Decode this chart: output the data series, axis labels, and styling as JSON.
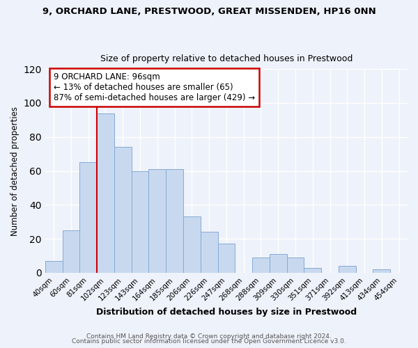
{
  "title1": "9, ORCHARD LANE, PRESTWOOD, GREAT MISSENDEN, HP16 0NN",
  "title2": "Size of property relative to detached houses in Prestwood",
  "xlabel": "Distribution of detached houses by size in Prestwood",
  "ylabel": "Number of detached properties",
  "bar_labels": [
    "40sqm",
    "60sqm",
    "81sqm",
    "102sqm",
    "123sqm",
    "143sqm",
    "164sqm",
    "185sqm",
    "206sqm",
    "226sqm",
    "247sqm",
    "268sqm",
    "288sqm",
    "309sqm",
    "330sqm",
    "351sqm",
    "371sqm",
    "392sqm",
    "413sqm",
    "434sqm",
    "454sqm"
  ],
  "bar_heights": [
    7,
    25,
    65,
    94,
    74,
    60,
    61,
    61,
    33,
    24,
    17,
    0,
    9,
    11,
    9,
    3,
    0,
    4,
    0,
    2,
    0
  ],
  "bar_color": "#c8d9ef",
  "bar_edge_color": "#85aad4",
  "vline_x_index": 3,
  "vline_color": "#cc0000",
  "annotation_title": "9 ORCHARD LANE: 96sqm",
  "annotation_line1": "← 13% of detached houses are smaller (65)",
  "annotation_line2": "87% of semi-detached houses are larger (429) →",
  "annotation_box_color": "#ffffff",
  "annotation_box_edge": "#cc0000",
  "ylim": [
    0,
    120
  ],
  "yticks": [
    0,
    20,
    40,
    60,
    80,
    100,
    120
  ],
  "footer1": "Contains HM Land Registry data © Crown copyright and database right 2024.",
  "footer2": "Contains public sector information licensed under the Open Government Licence v3.0.",
  "bg_color": "#eef2fa",
  "plot_bg_color": "#eef2fa",
  "grid_color": "#ffffff"
}
